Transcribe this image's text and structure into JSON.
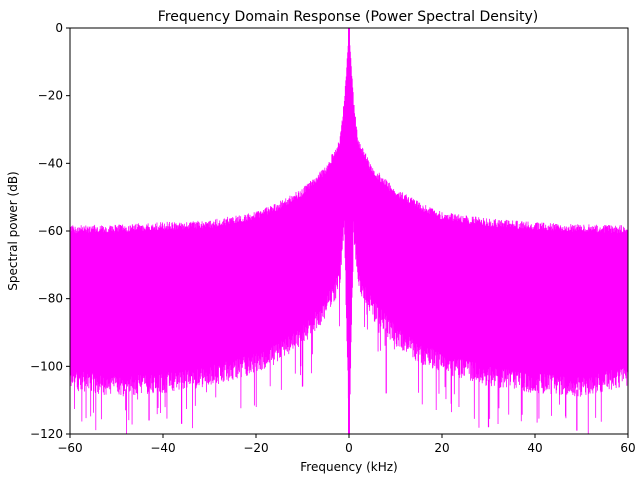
{
  "chart_data": {
    "type": "line",
    "title": "Frequency Domain Response (Power Spectral Density)",
    "xlabel": "Frequency (kHz)",
    "ylabel": "Spectral power (dB)",
    "xlim": [
      -60,
      60
    ],
    "ylim": [
      -120,
      0
    ],
    "grid": false,
    "legend": "none",
    "x_ticks": [
      -60,
      -40,
      -20,
      0,
      20,
      40,
      60
    ],
    "y_ticks": [
      0,
      -20,
      -40,
      -60,
      -80,
      -100,
      -120
    ],
    "x_tick_labels": [
      "−60",
      "−40",
      "−20",
      "0",
      "20",
      "40",
      "60"
    ],
    "y_tick_labels": [
      "0",
      "−20",
      "−40",
      "−60",
      "−80",
      "−100",
      "−120"
    ],
    "series": [
      {
        "color": "#ff00ff",
        "x": [
          -60,
          -50,
          -40,
          -30,
          -20,
          -15,
          -10,
          -5,
          -2,
          -1,
          0,
          1,
          2,
          5,
          10,
          15,
          20,
          30,
          40,
          50,
          60
        ],
        "upper": [
          -59.5,
          -59.2,
          -58.5,
          -58.0,
          -55.5,
          -52.5,
          -48.5,
          -42.0,
          -34.0,
          -22.0,
          0,
          -22.0,
          -34.0,
          -42.0,
          -48.5,
          -52.5,
          -55.5,
          -57.5,
          -58.5,
          -59.2,
          -59.5
        ],
        "lower": [
          -105,
          -107,
          -106,
          -104,
          -100,
          -97,
          -92,
          -84,
          -76,
          -60,
          -120,
          -60,
          -76,
          -84,
          -92,
          -97,
          -100,
          -104,
          -106,
          -107,
          -104
        ]
      }
    ]
  }
}
